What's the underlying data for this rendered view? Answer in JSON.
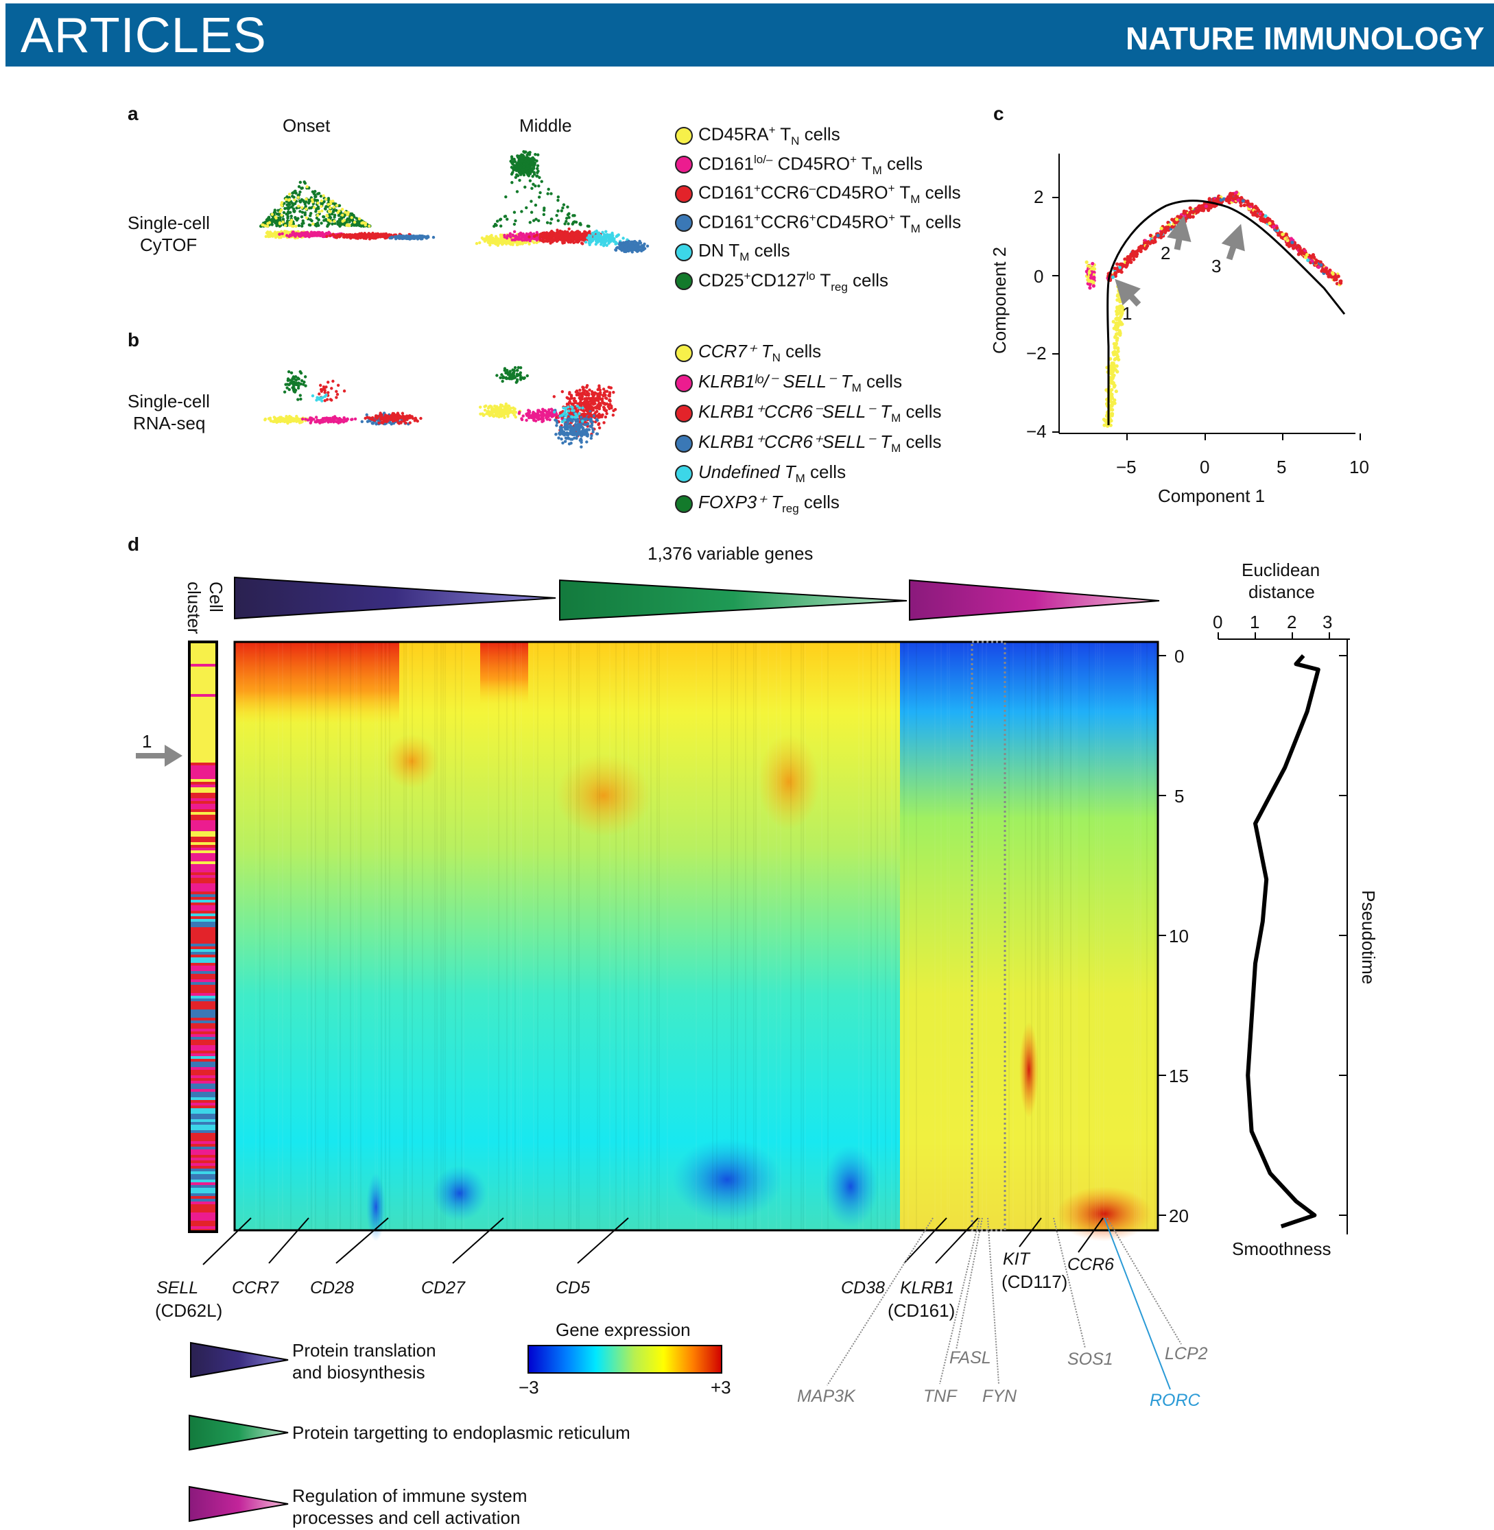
{
  "header": {
    "left": "ARTICLES",
    "right": "NATURE IMMUNOLOGY"
  },
  "panel_labels": {
    "a": "a",
    "b": "b",
    "c": "c",
    "d": "d"
  },
  "panel_a": {
    "col_onset": "Onset",
    "col_middle": "Middle",
    "row_label_1": "Single-cell",
    "row_label_2": "CyTOF",
    "legend": [
      {
        "main": "CD45RA",
        "sup": "+",
        "tail": " T",
        "sub": "N",
        "end": " cells",
        "color": "#f7f04a"
      },
      {
        "main": "CD161",
        "sup": "lo/–",
        "tail": " CD45RO",
        "sup2": "+",
        "tail2": " T",
        "sub": "M",
        "end": " cells",
        "color": "#ec1c8f"
      },
      {
        "main": "CD161",
        "sup": "+",
        "tail": "CCR6",
        "sup2": "–",
        "tail2": "CD45RO",
        "sup3": "+",
        "tail3": " T",
        "sub": "M",
        "end": " cells",
        "color": "#e3232a"
      },
      {
        "main": "CD161",
        "sup": "+",
        "tail": "CCR6",
        "sup2": "+",
        "tail2": "CD45RO",
        "sup3": "+",
        "tail3": " T",
        "sub": "M",
        "end": " cells",
        "color": "#3a78b6"
      },
      {
        "main": "DN T",
        "sub": "M",
        "end": " cells",
        "color": "#3cd6e8"
      },
      {
        "main": "CD25",
        "sup": "+",
        "tail": "CD127",
        "sup2": "lo",
        "tail2": " T",
        "sub": "reg",
        "end": " cells",
        "color": "#137a2b"
      }
    ]
  },
  "panel_b": {
    "row_label_1": "Single-cell",
    "row_label_2": "RNA-seq",
    "legend": [
      {
        "text": "CCR7⁺ T",
        "sub": "N",
        "end": " cells",
        "color": "#f7f04a"
      },
      {
        "text": "KLRB1ˡᵒ/⁻ SELL⁻ T",
        "sub": "M",
        "end": " cells",
        "color": "#ec1c8f"
      },
      {
        "text": "KLRB1⁺CCR6⁻SELL⁻ T",
        "sub": "M",
        "end": " cells",
        "color": "#e3232a"
      },
      {
        "text": "KLRB1⁺CCR6⁺SELL⁻ T",
        "sub": "M",
        "end": " cells",
        "color": "#3a78b6"
      },
      {
        "text": "Undefined T",
        "sub": "M",
        "end": " cells",
        "color": "#3cd6e8"
      },
      {
        "text": "FOXP3⁺ T",
        "sub": "reg",
        "end": " cells",
        "color": "#137a2b"
      }
    ]
  },
  "panel_c": {
    "xlabel": "Component 1",
    "ylabel": "Component 2",
    "xticks": [
      "−5",
      "0",
      "5",
      "10"
    ],
    "yticks": [
      "2",
      "0",
      "−2",
      "−4"
    ],
    "arrow_labels": [
      "1",
      "2",
      "3"
    ]
  },
  "panel_d": {
    "title": "1,376 variable genes",
    "cell_cluster_label_1": "Cell",
    "cell_cluster_label_2": "cluster",
    "arrow_label": "1",
    "pseudotime_label": "Pseudotime",
    "pseudotime_ticks": [
      "0",
      "5",
      "10",
      "15",
      "20"
    ],
    "euclid_title_1": "Euclidean",
    "euclid_title_2": "distance",
    "euclid_ticks": [
      "0",
      "1",
      "2",
      "3"
    ],
    "smoothness_label": "Smoothness",
    "colorbar_title": "Gene expression",
    "colorbar_min": "−3",
    "colorbar_max": "+3",
    "genes_black": [
      {
        "name": "SELL",
        "sub": "(CD62L)"
      },
      {
        "name": "CCR7"
      },
      {
        "name": "CD28"
      },
      {
        "name": "CD27"
      },
      {
        "name": "CD5"
      },
      {
        "name": "CD38"
      },
      {
        "name": "KLRB1",
        "sub": "(CD161)"
      },
      {
        "name": "KIT",
        "sub": "(CD117)"
      },
      {
        "name": "CCR6"
      }
    ],
    "genes_grey": [
      "MAP3K",
      "TNF",
      "FASL",
      "FYN",
      "SOS1",
      "LCP2"
    ],
    "genes_blue": [
      "RORC"
    ],
    "legend_triangles": [
      {
        "line1": "Protein translation",
        "line2": "and biosynthesis"
      },
      {
        "line1": "Protein targetting to endoplasmic reticulum",
        "line2": ""
      },
      {
        "line1": "Regulation of immune system",
        "line2": "processes and cell activation"
      }
    ]
  },
  "chart_data": [
    {
      "type": "line",
      "title": "",
      "xlabel": "",
      "ylabel": "Pseudotime",
      "series": [
        {
          "name": "Smoothness",
          "x": [
            2.3,
            2.1,
            2.7,
            2.4,
            1.8,
            1.0,
            1.3,
            1.2,
            1.0,
            0.9,
            0.8,
            0.9,
            1.4,
            2.1,
            2.6,
            1.7
          ],
          "y": [
            0,
            0.3,
            0.5,
            2,
            4,
            6,
            8,
            9.5,
            11,
            13,
            15,
            17,
            18.5,
            19.5,
            20,
            20.4
          ]
        }
      ],
      "xlim": [
        0,
        3.5
      ],
      "ylim": [
        0,
        20.5
      ]
    }
  ]
}
